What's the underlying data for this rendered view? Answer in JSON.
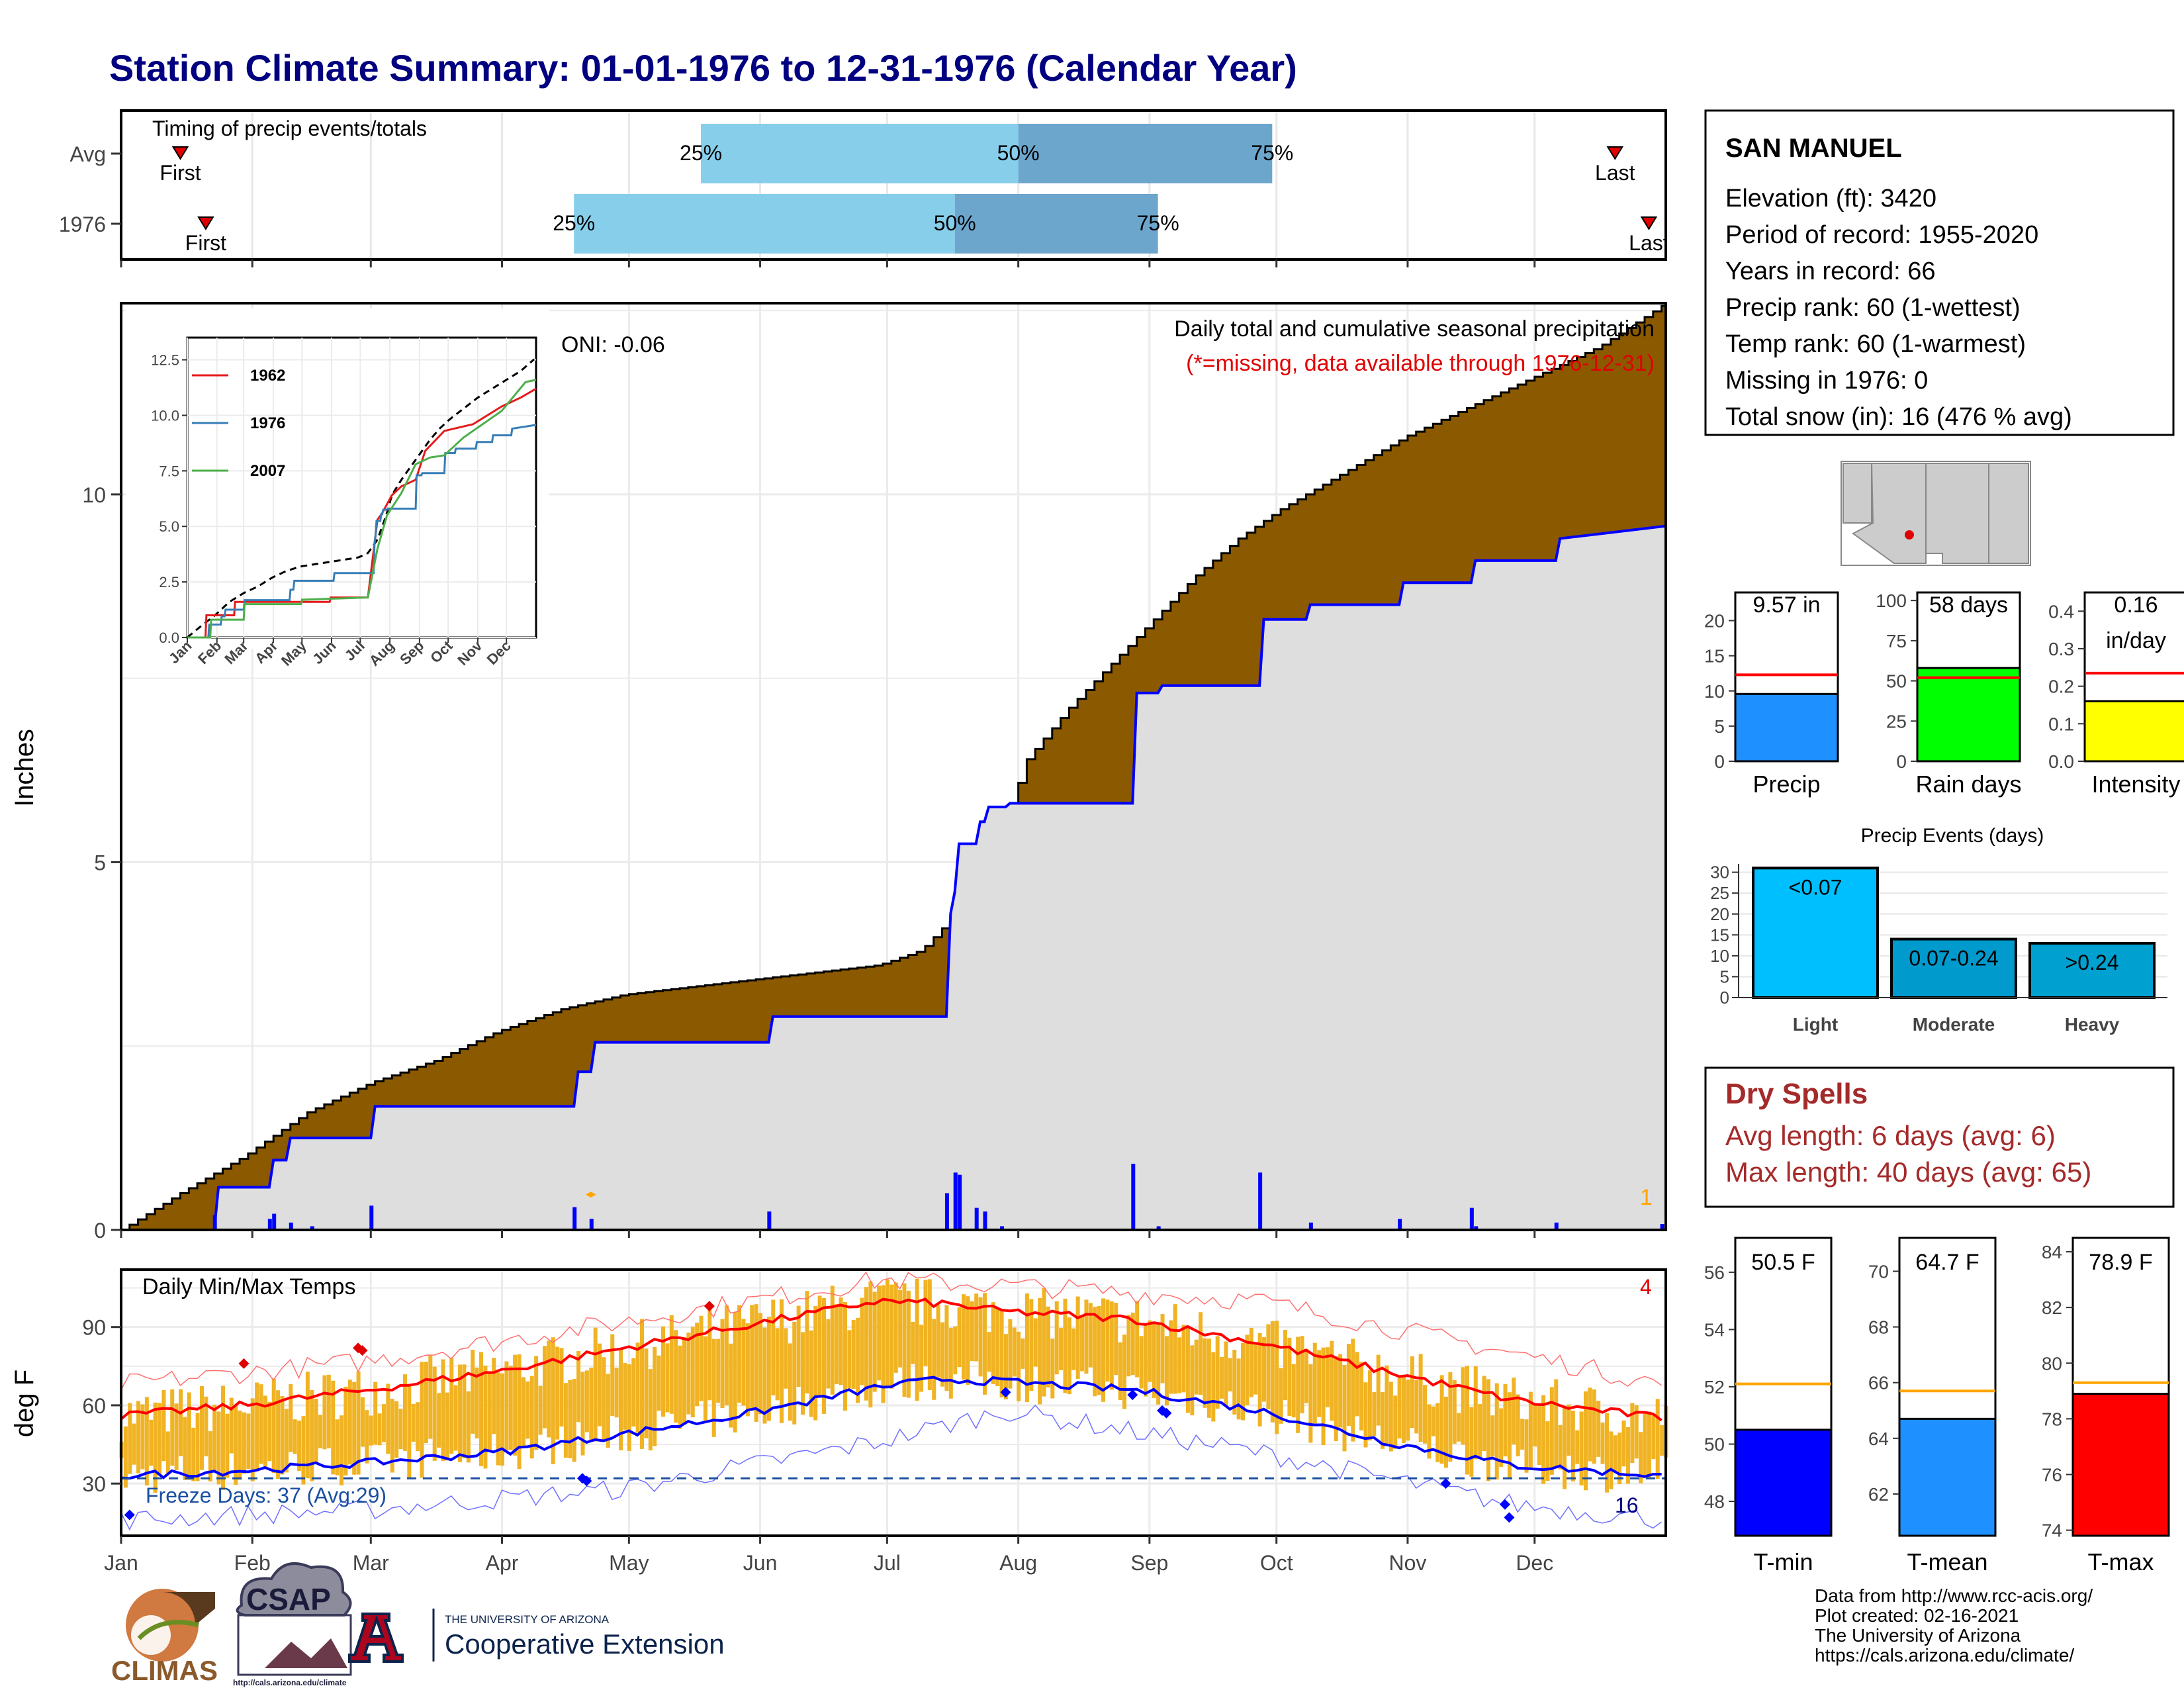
{
  "title": "Station Climate Summary: 01-01-1976 to 12-31-1976 (Calendar Year)",
  "months": [
    "Jan",
    "Feb",
    "Mar",
    "Apr",
    "May",
    "Jun",
    "Jul",
    "Aug",
    "Sep",
    "Oct",
    "Nov",
    "Dec"
  ],
  "timing": {
    "panel_label": "Timing of precip events/totals",
    "rows": [
      {
        "label": "Avg",
        "first_label": "First",
        "last_label": "Last",
        "first_doy": 15,
        "p25_doy": 138,
        "p50_doy": 213,
        "p75_doy": 273,
        "last_doy": 354,
        "p25": "25%",
        "p50": "50%",
        "p75": "75%"
      },
      {
        "label": "1976",
        "first_label": "First",
        "last_label": "Last",
        "first_doy": 21,
        "p25_doy": 108,
        "p50_doy": 198,
        "p75_doy": 246,
        "last_doy": 362,
        "p25": "25%",
        "p50": "50%",
        "p75": "75%"
      }
    ]
  },
  "precip": {
    "ylabel": "Inches",
    "yticks": [
      0,
      5,
      10
    ],
    "ylim": [
      0,
      12.6
    ],
    "panel_title": "Daily total and cumulative seasonal precipitation",
    "missing_note": "(*=missing, data available through 1976-12-31)",
    "oni": "ONI: -0.06",
    "snow_count": "1",
    "colors": {
      "avg_fill": "#8B5A00",
      "year_fill": "#DEDEDE",
      "year_line": "#0000FF"
    }
  },
  "inset": {
    "yticks": [
      "0.0",
      "2.5",
      "5.0",
      "7.5",
      "10.0",
      "12.5"
    ],
    "xticks": [
      "Jan",
      "Feb",
      "Mar",
      "Apr",
      "May",
      "Jun",
      "Jul",
      "Aug",
      "Sep",
      "Oct",
      "Nov",
      "Dec"
    ],
    "legend": [
      {
        "name": "1962",
        "color": "#E41A1C"
      },
      {
        "name": "1976",
        "color": "#377EB8"
      },
      {
        "name": "2007",
        "color": "#4DAF4A"
      }
    ]
  },
  "temps": {
    "ylabel": "deg F",
    "panel_title": "Daily Min/Max Temps",
    "yticks": [
      30,
      60,
      90
    ],
    "ylim": [
      10,
      112
    ],
    "freeze_label": "Freeze Days: 37 (Avg:29)",
    "freeze_count": "16",
    "hot_count": "4"
  },
  "station": {
    "name": "SAN MANUEL",
    "lines": [
      "Elevation (ft): 3420",
      "Period of record: 1955-2020",
      "Years in record: 66",
      "Precip rank: 60 (1-wettest)",
      "Temp rank: 60 (1-warmest)",
      "Missing in 1976: 0",
      "Total snow (in): 16 (476 % avg)"
    ]
  },
  "summary_bars": [
    {
      "label": "Precip",
      "value": 9.57,
      "value_label": "9.57 in",
      "avg": 12.3,
      "ylim": [
        0,
        24
      ],
      "yticks": [
        "0",
        "5",
        "10",
        "15",
        "20"
      ],
      "color": "#1E90FF"
    },
    {
      "label": "Rain days",
      "value": 58,
      "value_label": "58 days",
      "avg": 52,
      "ylim": [
        0,
        105
      ],
      "yticks": [
        "0",
        "25",
        "50",
        "75",
        "100"
      ],
      "color": "#00FF00"
    },
    {
      "label": "Intensity",
      "value": 0.16,
      "value_label": "0.16",
      "value_label2": "in/day",
      "avg": 0.235,
      "ylim": [
        0,
        0.45
      ],
      "yticks": [
        "0.0",
        "0.1",
        "0.2",
        "0.3",
        "0.4"
      ],
      "color": "#FFFF00"
    }
  ],
  "events": {
    "title": "Precip Events (days)",
    "yticks": [
      "0",
      "5",
      "10",
      "15",
      "20",
      "25",
      "30"
    ],
    "categories": [
      "Light",
      "Moderate",
      "Heavy"
    ],
    "values": [
      31,
      14,
      13
    ],
    "labels": [
      "<0.07",
      "0.07-0.24",
      ">0.24"
    ],
    "colors": [
      "#00BFFF",
      "#009ACD",
      "#00A0D0"
    ]
  },
  "dry_spells": {
    "title": "Dry Spells",
    "avg_line": "Avg length: 6 days (avg: 6)",
    "max_line": "Max length: 40 days (avg: 65)"
  },
  "temp_bars": [
    {
      "label": "T-min",
      "value": 50.5,
      "value_label": "50.5 F",
      "avg": 52.1,
      "ylim": [
        46.8,
        57.2
      ],
      "yticks": [
        "48",
        "50",
        "52",
        "54",
        "56"
      ],
      "color": "#0000FF"
    },
    {
      "label": "T-mean",
      "value": 64.7,
      "value_label": "64.7 F",
      "avg": 65.7,
      "ylim": [
        60.5,
        71.2
      ],
      "yticks": [
        "62",
        "64",
        "66",
        "68",
        "70"
      ],
      "color": "#1E90FF"
    },
    {
      "label": "T-max",
      "value": 78.9,
      "value_label": "78.9 F",
      "avg": 79.3,
      "ylim": [
        73.8,
        84.5
      ],
      "yticks": [
        "74",
        "76",
        "78",
        "80",
        "82",
        "84"
      ],
      "color": "#FF0000"
    }
  ],
  "footer": {
    "lines": [
      "Data from http://www.rcc-acis.org/",
      "Plot created: 02-16-2021",
      "The University of Arizona",
      "https://cals.arizona.edu/climate/"
    ],
    "logos": {
      "climas": "CLIMAS",
      "csap": "CSAP",
      "csap_url": "http://cals.arizona.edu/climate",
      "ua_small": "THE UNIVERSITY OF ARIZONA",
      "ua_big": "Cooperative Extension"
    }
  },
  "chart_data": [
    {
      "type": "area",
      "title": "Daily total and cumulative seasonal precipitation",
      "ylabel": "Inches",
      "x_unit": "day of year",
      "ylim": [
        0,
        12.6
      ],
      "series": [
        {
          "name": "Avg",
          "x": [
            1,
            15,
            30,
            45,
            60,
            75,
            90,
            105,
            120,
            135,
            150,
            165,
            180,
            190,
            200,
            210,
            215,
            225,
            235,
            245,
            255,
            265,
            275,
            290,
            305,
            320,
            335,
            350,
            366
          ],
          "values": [
            0,
            0.5,
            1.0,
            1.6,
            2.0,
            2.3,
            2.7,
            3.0,
            3.2,
            3.3,
            3.4,
            3.5,
            3.6,
            3.8,
            4.4,
            5.6,
            6.4,
            7.1,
            7.7,
            8.3,
            8.9,
            9.4,
            9.8,
            10.3,
            10.8,
            11.2,
            11.6,
            12.0,
            12.6
          ]
        },
        {
          "name": "1976",
          "x": [
            1,
            23,
            24,
            36,
            37,
            40,
            41,
            60,
            61,
            108,
            109,
            112,
            113,
            154,
            155,
            196,
            197,
            198,
            199,
            203,
            204,
            205,
            206,
            210,
            211,
            240,
            241,
            246,
            247,
            270,
            271,
            281,
            282,
            303,
            304,
            320,
            321,
            340,
            341,
            366
          ],
          "values": [
            0.0,
            0.0,
            0.58,
            0.58,
            0.95,
            0.95,
            1.25,
            1.25,
            1.68,
            1.68,
            2.15,
            2.15,
            2.55,
            2.55,
            2.9,
            2.9,
            4.3,
            4.6,
            5.25,
            5.25,
            5.55,
            5.55,
            5.75,
            5.75,
            5.8,
            5.8,
            7.3,
            7.3,
            7.4,
            7.4,
            8.3,
            8.3,
            8.5,
            8.5,
            8.8,
            8.8,
            9.1,
            9.1,
            9.4,
            9.57
          ]
        }
      ],
      "daily_bars": [
        {
          "x": 23,
          "value": 0.2
        },
        {
          "x": 36,
          "value": 0.15
        },
        {
          "x": 37,
          "value": 0.22
        },
        {
          "x": 41,
          "value": 0.1
        },
        {
          "x": 46,
          "value": 0.05
        },
        {
          "x": 60,
          "value": 0.33
        },
        {
          "x": 108,
          "value": 0.31
        },
        {
          "x": 112,
          "value": 0.15
        },
        {
          "x": 154,
          "value": 0.25
        },
        {
          "x": 196,
          "value": 0.5
        },
        {
          "x": 198,
          "value": 0.78
        },
        {
          "x": 199,
          "value": 0.75
        },
        {
          "x": 203,
          "value": 0.3
        },
        {
          "x": 205,
          "value": 0.25
        },
        {
          "x": 209,
          "value": 0.05
        },
        {
          "x": 240,
          "value": 0.9
        },
        {
          "x": 246,
          "value": 0.05
        },
        {
          "x": 270,
          "value": 0.78
        },
        {
          "x": 282,
          "value": 0.1
        },
        {
          "x": 303,
          "value": 0.15
        },
        {
          "x": 320,
          "value": 0.3
        },
        {
          "x": 321,
          "value": 0.05
        },
        {
          "x": 340,
          "value": 0.1
        },
        {
          "x": 365,
          "value": 0.08
        }
      ]
    },
    {
      "type": "line",
      "title": "Daily Min/Max Temps",
      "ylabel": "deg F",
      "x_unit": "day of year",
      "ylim": [
        10,
        112
      ],
      "series": [
        {
          "name": "Avg Max",
          "x": [
            1,
            30,
            60,
            90,
            120,
            150,
            180,
            195,
            210,
            240,
            270,
            300,
            330,
            366
          ],
          "values": [
            56,
            60,
            66,
            73,
            82,
            91,
            100,
            99,
            96,
            93,
            84,
            73,
            62,
            55
          ]
        },
        {
          "name": "Avg Min",
          "x": [
            1,
            30,
            60,
            90,
            120,
            150,
            180,
            195,
            210,
            240,
            270,
            300,
            330,
            366
          ],
          "values": [
            33,
            35,
            38,
            42,
            49,
            57,
            67,
            70,
            69,
            66,
            58,
            46,
            37,
            33
          ]
        },
        {
          "name": "Record Max",
          "x": [
            1,
            60,
            120,
            180,
            210,
            270,
            330,
            366
          ],
          "values": [
            68,
            77,
            92,
            108,
            106,
            100,
            80,
            68
          ]
        },
        {
          "name": "Record Min",
          "x": [
            1,
            60,
            120,
            180,
            210,
            270,
            330,
            366
          ],
          "values": [
            16,
            20,
            28,
            46,
            58,
            42,
            22,
            16
          ]
        }
      ],
      "freeze_threshold": 32
    },
    {
      "type": "bar",
      "title": "Precip Events (days)",
      "categories": [
        "Light",
        "Moderate",
        "Heavy"
      ],
      "values": [
        31,
        14,
        13
      ]
    },
    {
      "type": "bar",
      "categories": [
        "Precip",
        "Rain days",
        "Intensity"
      ],
      "values": [
        9.57,
        58,
        0.16
      ]
    },
    {
      "type": "bar",
      "categories": [
        "T-min",
        "T-mean",
        "T-max"
      ],
      "values": [
        50.5,
        64.7,
        78.9
      ]
    }
  ]
}
